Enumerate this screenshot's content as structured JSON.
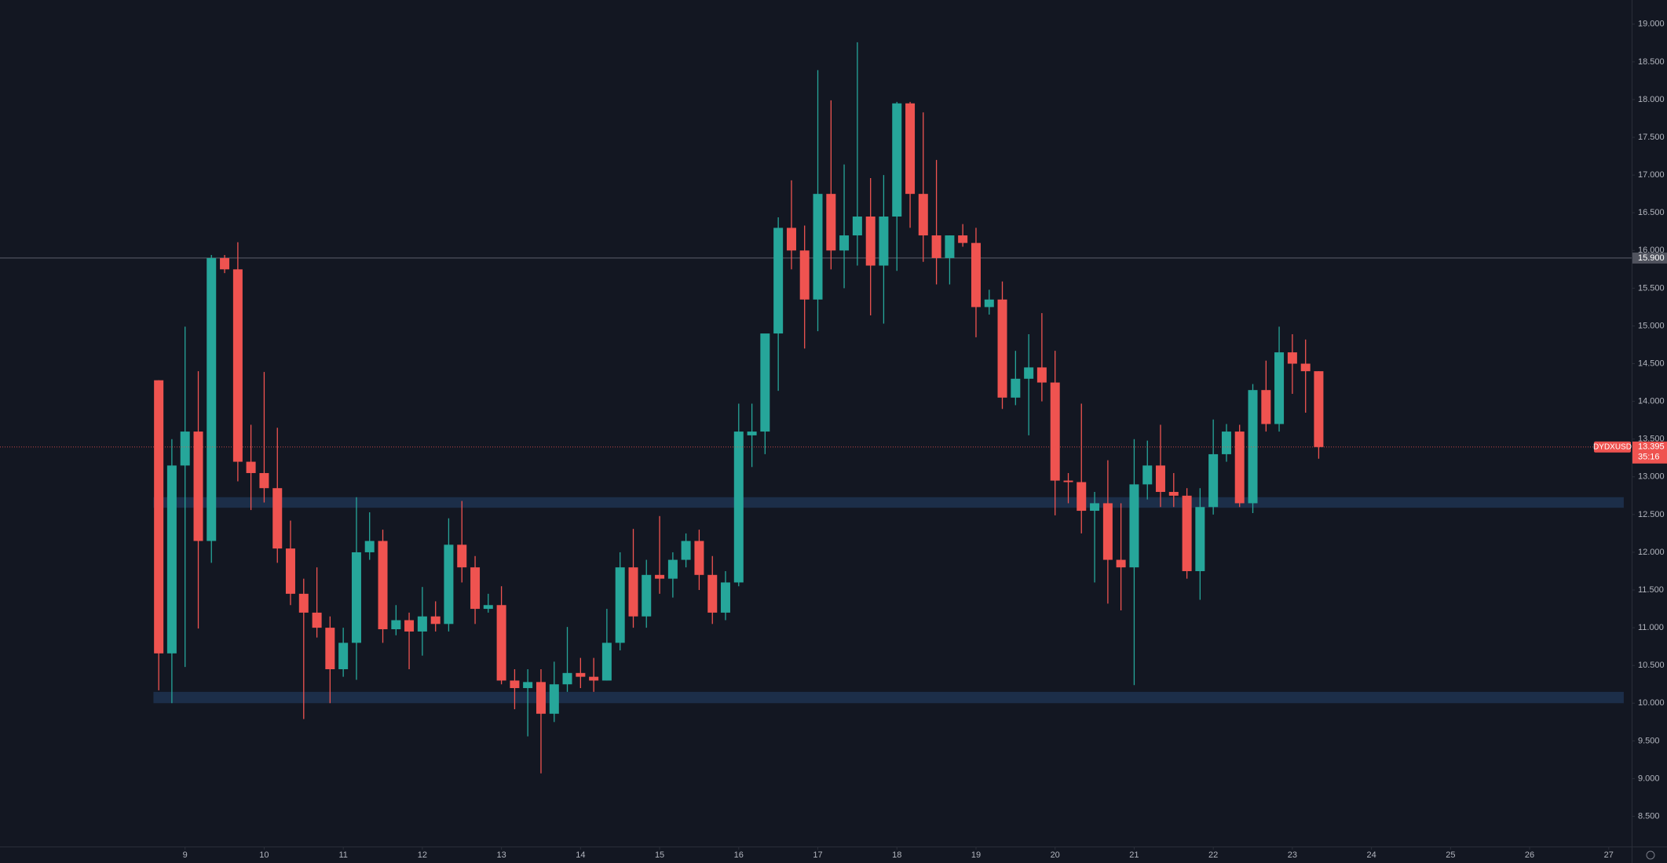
{
  "chart_data": {
    "type": "candlestick",
    "symbol": "DYDXUSD",
    "timer": "35:16",
    "last_price": 13.395,
    "up_color": "#26a69a",
    "down_color": "#ef5350",
    "x": [
      8.667,
      8.833,
      9,
      9.167,
      9.333,
      9.5,
      9.667,
      9.833,
      10,
      10.167,
      10.333,
      10.5,
      10.667,
      10.833,
      11,
      11.167,
      11.333,
      11.5,
      11.667,
      11.833,
      12,
      12.167,
      12.333,
      12.5,
      12.667,
      12.833,
      13,
      13.167,
      13.333,
      13.5,
      13.667,
      13.833,
      14,
      14.167,
      14.333,
      14.5,
      14.667,
      14.833,
      15,
      15.167,
      15.333,
      15.5,
      15.667,
      15.833,
      16,
      16.167,
      16.333,
      16.5,
      16.667,
      16.833,
      17,
      17.167,
      17.333,
      17.5,
      17.667,
      17.833,
      18,
      18.167,
      18.333,
      18.5,
      18.667,
      18.833,
      19,
      19.167,
      19.333,
      19.5,
      19.667,
      19.833,
      20,
      20.167,
      20.333,
      20.5,
      20.667,
      20.833,
      21,
      21.167,
      21.333,
      21.5,
      21.667,
      21.833,
      22,
      22.167,
      22.333,
      22.5,
      22.667,
      22.833,
      23,
      23.167,
      23.333
    ],
    "open": [
      14.28,
      10.66,
      13.15,
      13.6,
      12.15,
      15.9,
      15.75,
      13.2,
      13.05,
      12.85,
      12.05,
      11.45,
      11.2,
      11.0,
      10.45,
      10.8,
      12.0,
      12.15,
      10.98,
      11.1,
      10.95,
      11.15,
      11.05,
      12.1,
      11.8,
      11.25,
      11.3,
      10.3,
      10.2,
      10.28,
      9.86,
      10.25,
      10.4,
      10.35,
      10.3,
      10.8,
      11.8,
      11.15,
      11.7,
      11.65,
      11.9,
      12.15,
      11.7,
      11.2,
      11.6,
      13.55,
      13.6,
      14.9,
      16.3,
      16.0,
      15.35,
      16.75,
      16.0,
      16.2,
      16.45,
      15.8,
      16.45,
      17.95,
      16.75,
      16.2,
      15.9,
      16.2,
      16.1,
      15.25,
      15.35,
      14.05,
      14.3,
      14.45,
      14.25,
      12.95,
      12.93,
      12.55,
      12.65,
      11.9,
      11.8,
      12.9,
      13.15,
      12.8,
      12.75,
      11.75,
      12.6,
      13.3,
      13.6,
      12.65,
      14.15,
      13.7,
      14.65,
      14.5,
      14.4
    ],
    "high": [
      14.28,
      13.5,
      14.99,
      14.4,
      15.94,
      15.94,
      16.11,
      13.69,
      14.39,
      13.65,
      12.42,
      11.65,
      11.8,
      11.15,
      11.0,
      12.73,
      12.53,
      12.3,
      11.3,
      11.2,
      11.54,
      11.35,
      12.45,
      12.68,
      11.95,
      11.45,
      11.55,
      10.45,
      10.45,
      10.45,
      10.55,
      11.01,
      10.6,
      10.6,
      11.25,
      12.0,
      12.31,
      11.9,
      12.48,
      12.0,
      12.25,
      12.3,
      11.95,
      11.75,
      13.97,
      13.97,
      14.89,
      16.44,
      16.93,
      16.33,
      18.39,
      17.99,
      17.14,
      18.76,
      16.96,
      17.0,
      17.97,
      17.97,
      17.83,
      17.2,
      16.2,
      16.35,
      16.3,
      15.48,
      15.59,
      14.67,
      14.89,
      15.17,
      14.67,
      13.05,
      13.97,
      12.8,
      13.22,
      12.65,
      13.5,
      13.48,
      13.69,
      13.05,
      12.85,
      12.85,
      13.76,
      13.7,
      13.69,
      14.23,
      14.54,
      14.99,
      14.89,
      14.82,
      14.4
    ],
    "low": [
      10.17,
      10.0,
      10.48,
      10.99,
      11.86,
      15.7,
      12.94,
      12.56,
      12.66,
      11.86,
      11.3,
      9.79,
      10.87,
      10.0,
      10.35,
      10.31,
      11.9,
      10.8,
      10.9,
      10.45,
      10.63,
      10.95,
      10.95,
      11.6,
      11.05,
      11.2,
      10.25,
      9.92,
      9.56,
      9.07,
      9.75,
      10.15,
      10.2,
      10.15,
      10.3,
      10.7,
      11.0,
      11.0,
      11.45,
      11.4,
      11.8,
      11.5,
      11.05,
      11.1,
      11.55,
      13.13,
      13.3,
      14.14,
      15.75,
      14.7,
      14.93,
      15.75,
      15.5,
      15.8,
      15.14,
      15.03,
      15.73,
      16.3,
      15.85,
      15.55,
      15.55,
      16.05,
      14.85,
      15.15,
      13.9,
      13.95,
      13.55,
      14.0,
      12.49,
      12.65,
      12.25,
      11.6,
      11.32,
      11.23,
      10.24,
      12.7,
      12.6,
      12.6,
      11.65,
      11.37,
      12.5,
      13.2,
      12.6,
      12.52,
      13.6,
      13.6,
      14.1,
      13.85,
      13.24
    ],
    "close": [
      10.66,
      13.15,
      13.6,
      12.15,
      15.9,
      15.75,
      13.2,
      13.05,
      12.85,
      12.05,
      11.45,
      11.2,
      11.0,
      10.45,
      10.8,
      12.0,
      12.15,
      10.98,
      11.1,
      10.95,
      11.15,
      11.05,
      12.1,
      11.8,
      11.25,
      11.3,
      10.3,
      10.2,
      10.28,
      9.86,
      10.25,
      10.4,
      10.35,
      10.3,
      10.8,
      11.8,
      11.15,
      11.7,
      11.65,
      11.9,
      12.15,
      11.7,
      11.2,
      11.6,
      13.6,
      13.6,
      14.9,
      16.3,
      16.0,
      15.35,
      16.75,
      16.0,
      16.2,
      16.45,
      15.8,
      16.45,
      17.95,
      16.75,
      16.2,
      15.9,
      16.2,
      16.1,
      15.25,
      15.35,
      14.05,
      14.3,
      14.45,
      14.25,
      12.95,
      12.93,
      12.55,
      12.65,
      11.9,
      11.8,
      12.9,
      13.15,
      12.8,
      12.75,
      11.75,
      12.6,
      13.3,
      13.6,
      12.65,
      14.15,
      13.7,
      14.65,
      14.5,
      14.4,
      13.395
    ],
    "hline": {
      "value": 15.9,
      "label": "15.900"
    },
    "zones": [
      {
        "low": 12.59,
        "high": 12.73,
        "x0": 8.6,
        "x1": 27.19
      },
      {
        "low": 10.0,
        "high": 10.15,
        "x0": 8.6,
        "x1": 27.19
      }
    ],
    "xlim": [
      6.66,
      27.29
    ],
    "ylim": [
      8.1,
      19.32
    ],
    "xticks": [
      9,
      10,
      11,
      12,
      13,
      14,
      15,
      16,
      17,
      18,
      19,
      20,
      21,
      22,
      23,
      24,
      25,
      26,
      27
    ],
    "yticks": [
      {
        "value": 8.5,
        "label": "8.500"
      },
      {
        "value": 9,
        "label": "9.000"
      },
      {
        "value": 9.5,
        "label": "9.500"
      },
      {
        "value": 10,
        "label": "10.000"
      },
      {
        "value": 10.5,
        "label": "10.500"
      },
      {
        "value": 11,
        "label": "11.000"
      },
      {
        "value": 11.5,
        "label": "11.500"
      },
      {
        "value": 12,
        "label": "12.000"
      },
      {
        "value": 12.5,
        "label": "12.500"
      },
      {
        "value": 13,
        "label": "13.000"
      },
      {
        "value": 13.5,
        "label": "13.500"
      },
      {
        "value": 14,
        "label": "14.000"
      },
      {
        "value": 14.5,
        "label": "14.500"
      },
      {
        "value": 15,
        "label": "15.000"
      },
      {
        "value": 15.5,
        "label": "15.500"
      },
      {
        "value": 16,
        "label": "16.000"
      },
      {
        "value": 16.5,
        "label": "16.500"
      },
      {
        "value": 17,
        "label": "17.000"
      },
      {
        "value": 17.5,
        "label": "17.500"
      },
      {
        "value": 18,
        "label": "18.000"
      },
      {
        "value": 18.5,
        "label": "18.500"
      },
      {
        "value": 19,
        "label": "19.000"
      }
    ]
  }
}
